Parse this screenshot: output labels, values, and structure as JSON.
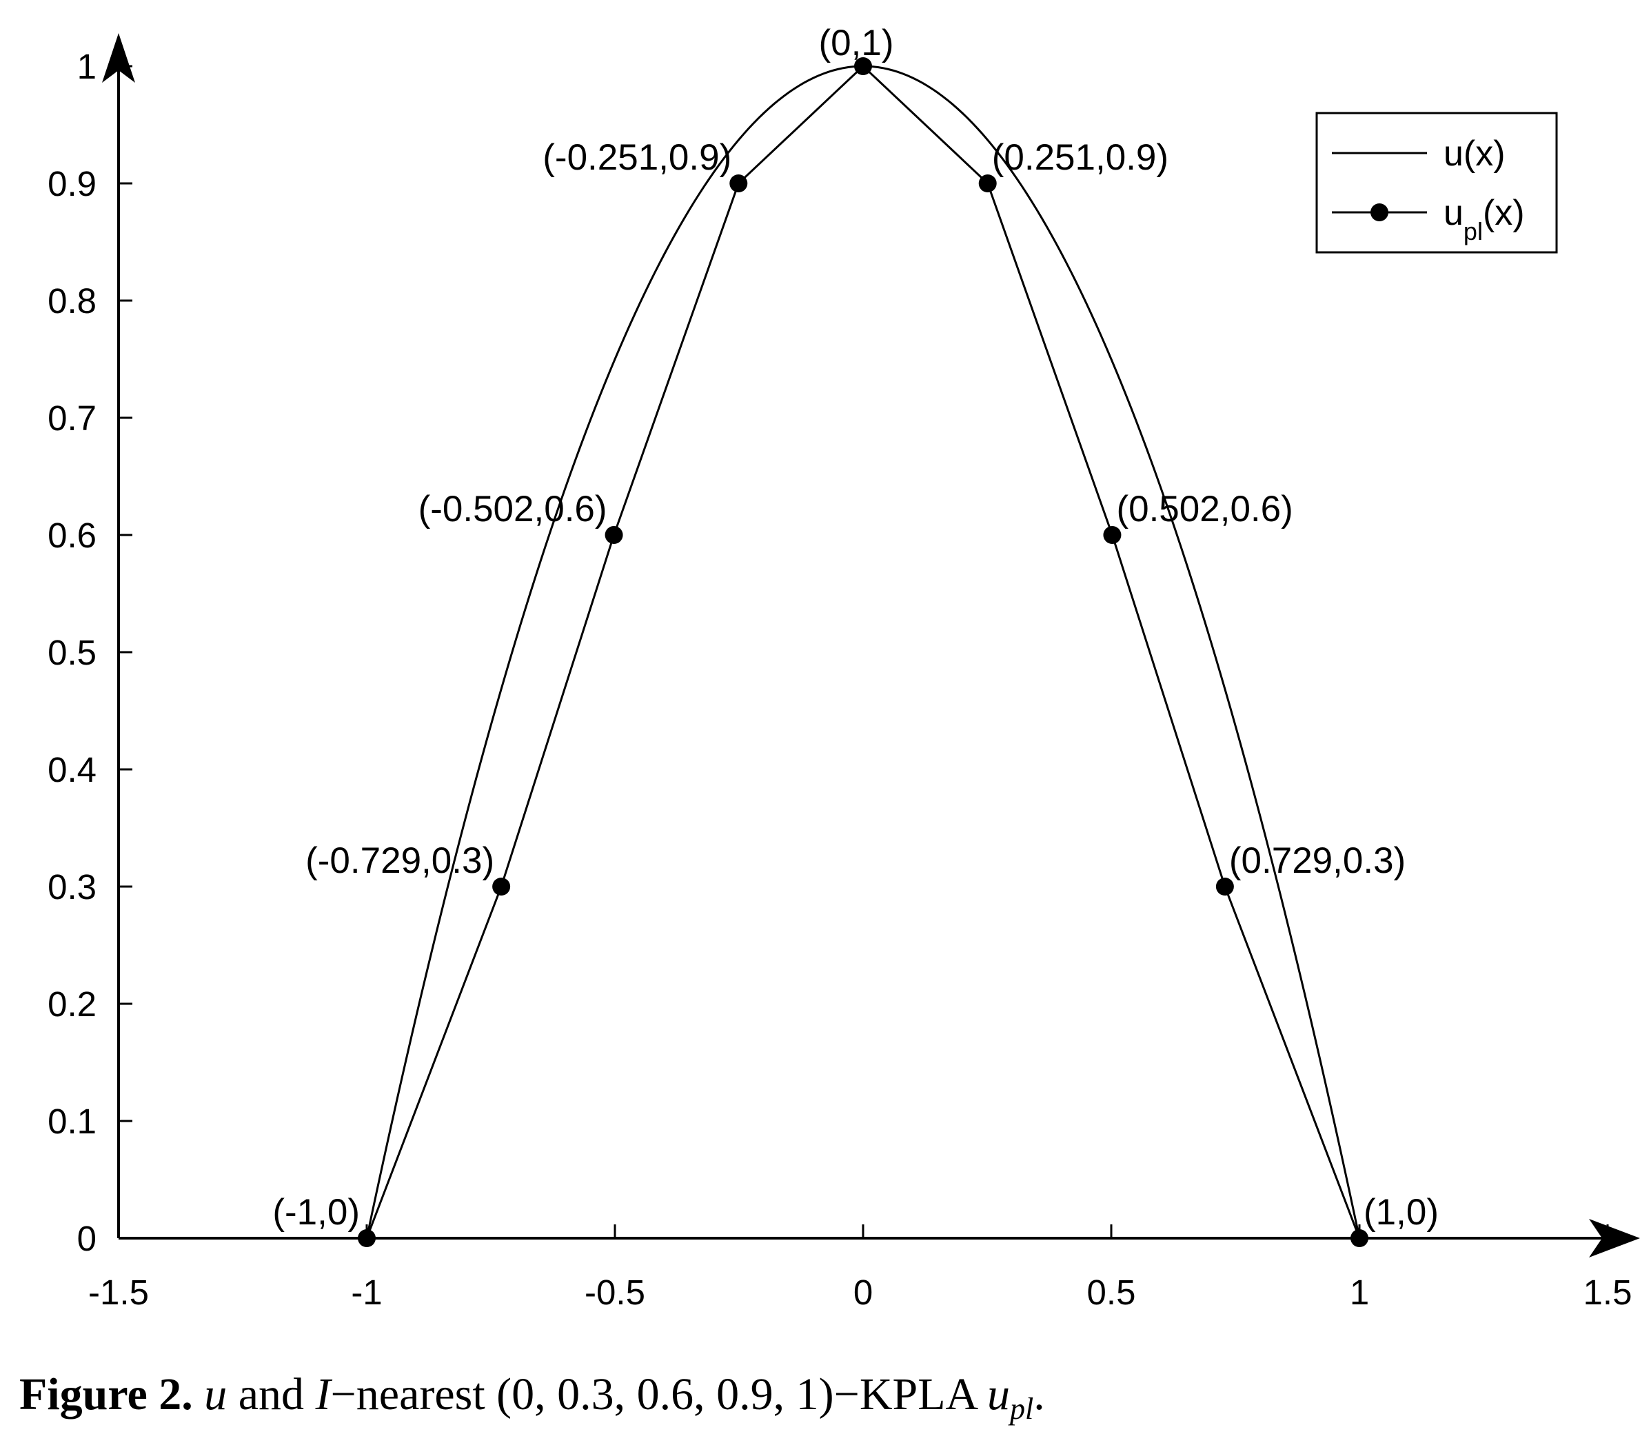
{
  "chart_data": {
    "type": "line",
    "xlim": [
      -1.5,
      1.5
    ],
    "ylim": [
      0,
      1
    ],
    "xticks": [
      "-1.5",
      "-1",
      "-0.5",
      "0",
      "0.5",
      "1",
      "1.5"
    ],
    "yticks": [
      "0",
      "0.1",
      "0.2",
      "0.3",
      "0.4",
      "0.5",
      "0.6",
      "0.7",
      "0.8",
      "0.9",
      "1"
    ],
    "legend": {
      "placement": "top-right",
      "entries": [
        {
          "label": "u(x)",
          "base": "u",
          "sub": "",
          "suffix": "(x)",
          "marker": false
        },
        {
          "label": "u_pl(x)",
          "base": "u",
          "sub": "pl",
          "suffix": "(x)",
          "marker": true
        }
      ]
    },
    "series": [
      {
        "name": "u(x)",
        "style": "smooth",
        "function": "1 - x^2 on [-1, 1]"
      },
      {
        "name": "u_pl(x)",
        "style": "polyline-with-markers",
        "x": [
          -1,
          -0.729,
          -0.502,
          -0.251,
          0,
          0.251,
          0.502,
          0.729,
          1
        ],
        "y": [
          0,
          0.3,
          0.6,
          0.9,
          1,
          0.9,
          0.6,
          0.3,
          0
        ]
      }
    ],
    "annotations": [
      {
        "x": -1,
        "y": 0,
        "text": "(-1,0)",
        "side": "left"
      },
      {
        "x": -0.729,
        "y": 0.3,
        "text": "(-0.729,0.3)",
        "side": "left"
      },
      {
        "x": -0.502,
        "y": 0.6,
        "text": "(-0.502,0.6)",
        "side": "left"
      },
      {
        "x": -0.251,
        "y": 0.9,
        "text": "(-0.251,0.9)",
        "side": "left"
      },
      {
        "x": 0,
        "y": 1,
        "text": "(0,1)",
        "side": "top"
      },
      {
        "x": 0.251,
        "y": 0.9,
        "text": "(0.251,0.9)",
        "side": "right"
      },
      {
        "x": 0.502,
        "y": 0.6,
        "text": "(0.502,0.6)",
        "side": "right"
      },
      {
        "x": 0.729,
        "y": 0.3,
        "text": "(0.729,0.3)",
        "side": "right"
      },
      {
        "x": 1,
        "y": 0,
        "text": "(1,0)",
        "side": "right"
      }
    ],
    "grid": false
  },
  "caption": {
    "label": "Figure 2.",
    "var_u": "u",
    "text_and": " and ",
    "var_I": "I",
    "text_nearest": "−nearest (0, 0.3, 0.6, 0.9, 1)−KPLA ",
    "var_upl": "u",
    "var_upl_sub": "pl",
    "end": "."
  }
}
